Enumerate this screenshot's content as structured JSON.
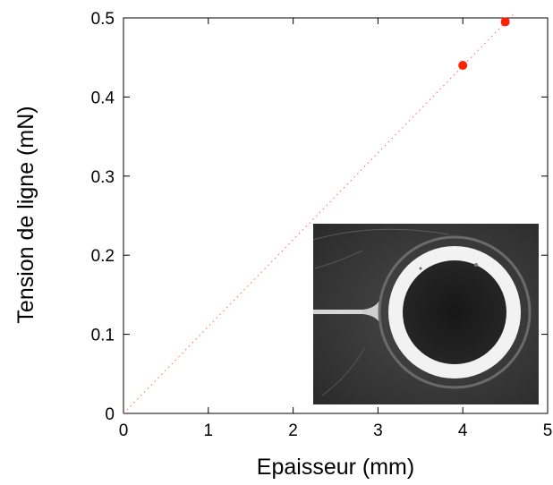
{
  "chart_data": {
    "type": "scatter",
    "xlabel": "Epaisseur (mm)",
    "ylabel": "Tension de ligne (mN)",
    "xlim": [
      0,
      5
    ],
    "ylim": [
      0,
      0.5
    ],
    "x_ticks": [
      "0",
      "1",
      "2",
      "3",
      "4",
      "5"
    ],
    "y_ticks": [
      "0",
      "0.1",
      "0.2",
      "0.3",
      "0.4",
      "0.5"
    ],
    "grid": false,
    "series": [
      {
        "x": [
          4.0,
          4.5
        ],
        "y": [
          0.44,
          0.495
        ],
        "color": "#ff2200"
      }
    ],
    "fit_line": {
      "x": [
        0,
        4.6
      ],
      "y": [
        0,
        0.505
      ],
      "style": "dotted",
      "color": "#ff6a4d"
    },
    "inset": {
      "kind": "photograph",
      "description": "grayscale photo of a ring-shaped film with a bright annulus, dark center and a thin channel on the left"
    }
  }
}
